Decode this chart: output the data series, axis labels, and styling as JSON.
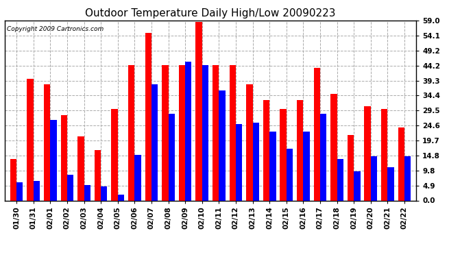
{
  "title": "Outdoor Temperature Daily High/Low 20090223",
  "copyright": "Copyright 2009 Cartronics.com",
  "dates": [
    "01/30",
    "01/31",
    "02/01",
    "02/02",
    "02/03",
    "02/04",
    "02/05",
    "02/06",
    "02/07",
    "02/08",
    "02/09",
    "02/10",
    "02/11",
    "02/12",
    "02/13",
    "02/14",
    "02/15",
    "02/16",
    "02/17",
    "02/18",
    "02/19",
    "02/20",
    "02/21",
    "02/22"
  ],
  "highs": [
    13.5,
    40.0,
    38.0,
    28.0,
    21.0,
    16.5,
    30.0,
    44.5,
    55.0,
    44.5,
    44.5,
    58.5,
    44.5,
    44.5,
    38.0,
    33.0,
    30.0,
    33.0,
    43.5,
    35.0,
    21.5,
    31.0,
    30.0,
    24.0
  ],
  "lows": [
    6.0,
    6.5,
    26.5,
    8.5,
    5.0,
    4.5,
    2.0,
    15.0,
    38.0,
    28.5,
    45.5,
    44.5,
    36.0,
    25.0,
    25.5,
    22.5,
    17.0,
    22.5,
    28.5,
    13.5,
    9.5,
    14.5,
    11.0,
    14.5
  ],
  "high_color": "#ff0000",
  "low_color": "#0000ff",
  "bg_color": "#ffffff",
  "plot_bg_color": "#ffffff",
  "grid_color": "#aaaaaa",
  "yticks": [
    0.0,
    4.9,
    9.8,
    14.8,
    19.7,
    24.6,
    29.5,
    34.4,
    39.3,
    44.2,
    49.2,
    54.1,
    59.0
  ],
  "ymax": 59.0,
  "ymin": 0.0,
  "bar_width": 0.38,
  "title_fontsize": 11,
  "tick_fontsize": 7.5,
  "copyright_fontsize": 6.5
}
